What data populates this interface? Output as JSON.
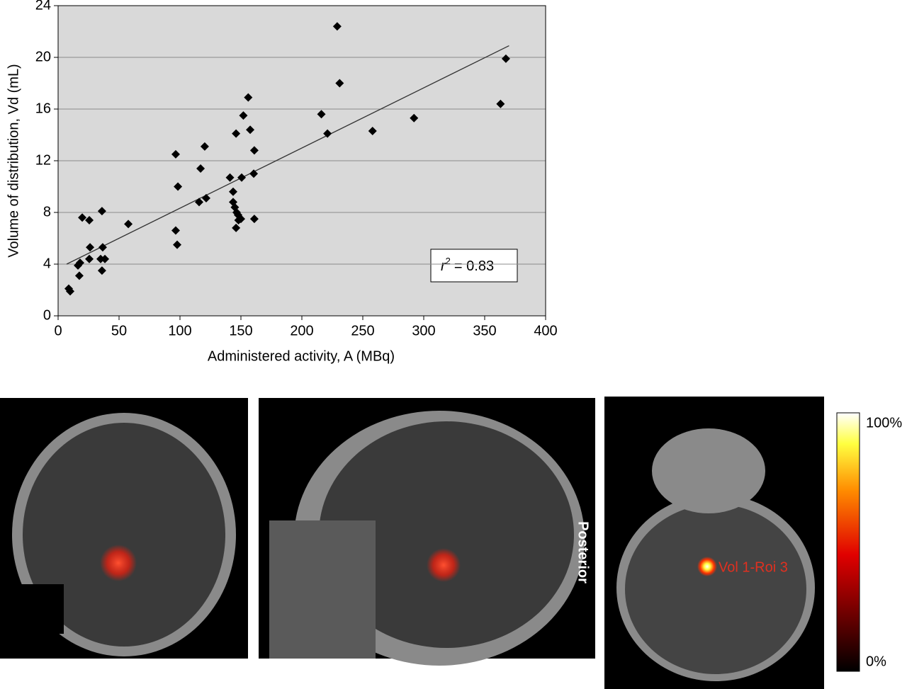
{
  "chart_data": {
    "type": "scatter",
    "xlabel": "Administered activity, A (MBq)",
    "ylabel": "Volume of distribution, Vd (mL)",
    "x": [
      8.7,
      9.9,
      17.4,
      16.3,
      18,
      19.8,
      25.6,
      26.2,
      25.6,
      36,
      36.6,
      34.9,
      38.4,
      36,
      57.6,
      96.5,
      98.3,
      96.5,
      97.7,
      116.9,
      115.7,
      120.3,
      121.5,
      141,
      146,
      143.6,
      143.6,
      145,
      146.5,
      147.7,
      146,
      148,
      150,
      150.6,
      152,
      156,
      157.6,
      160.5,
      161,
      161,
      216,
      221,
      229,
      231,
      258,
      292,
      363,
      367.4
    ],
    "values": [
      2.1,
      1.9,
      3.1,
      3.9,
      4.1,
      7.6,
      7.4,
      5.3,
      4.4,
      8.1,
      5.3,
      4.4,
      4.4,
      3.5,
      7.1,
      12.5,
      10,
      6.6,
      5.5,
      11.4,
      8.8,
      13.1,
      9.1,
      10.7,
      14.1,
      9.6,
      8.8,
      8.4,
      8,
      7.8,
      6.8,
      7.4,
      7.5,
      10.7,
      15.5,
      16.9,
      14.4,
      11,
      12.8,
      7.5,
      15.6,
      14.1,
      22.4,
      18,
      14.3,
      15.3,
      16.4,
      19.9
    ],
    "color": "#000000",
    "trendline": {
      "x": [
        7,
        370
      ],
      "values": [
        4.0,
        20.9
      ],
      "color": "#333333"
    },
    "annotation": {
      "variable": "r",
      "exponent": "2",
      "text": "= 0.83"
    },
    "xlim": [
      0,
      400
    ],
    "xticks": [
      0,
      50,
      100,
      150,
      200,
      250,
      300,
      350,
      400
    ],
    "ylim": [
      0,
      24
    ],
    "yticks": [
      0,
      4,
      8,
      12,
      16,
      20,
      24
    ],
    "grid": true,
    "background": "#d9d9d9"
  },
  "images": {
    "sagittal_label": "Posterior",
    "axial_label": "Vol 1-Roi 3",
    "colorbar": {
      "max_label": "100%",
      "min_label": "0%"
    }
  }
}
